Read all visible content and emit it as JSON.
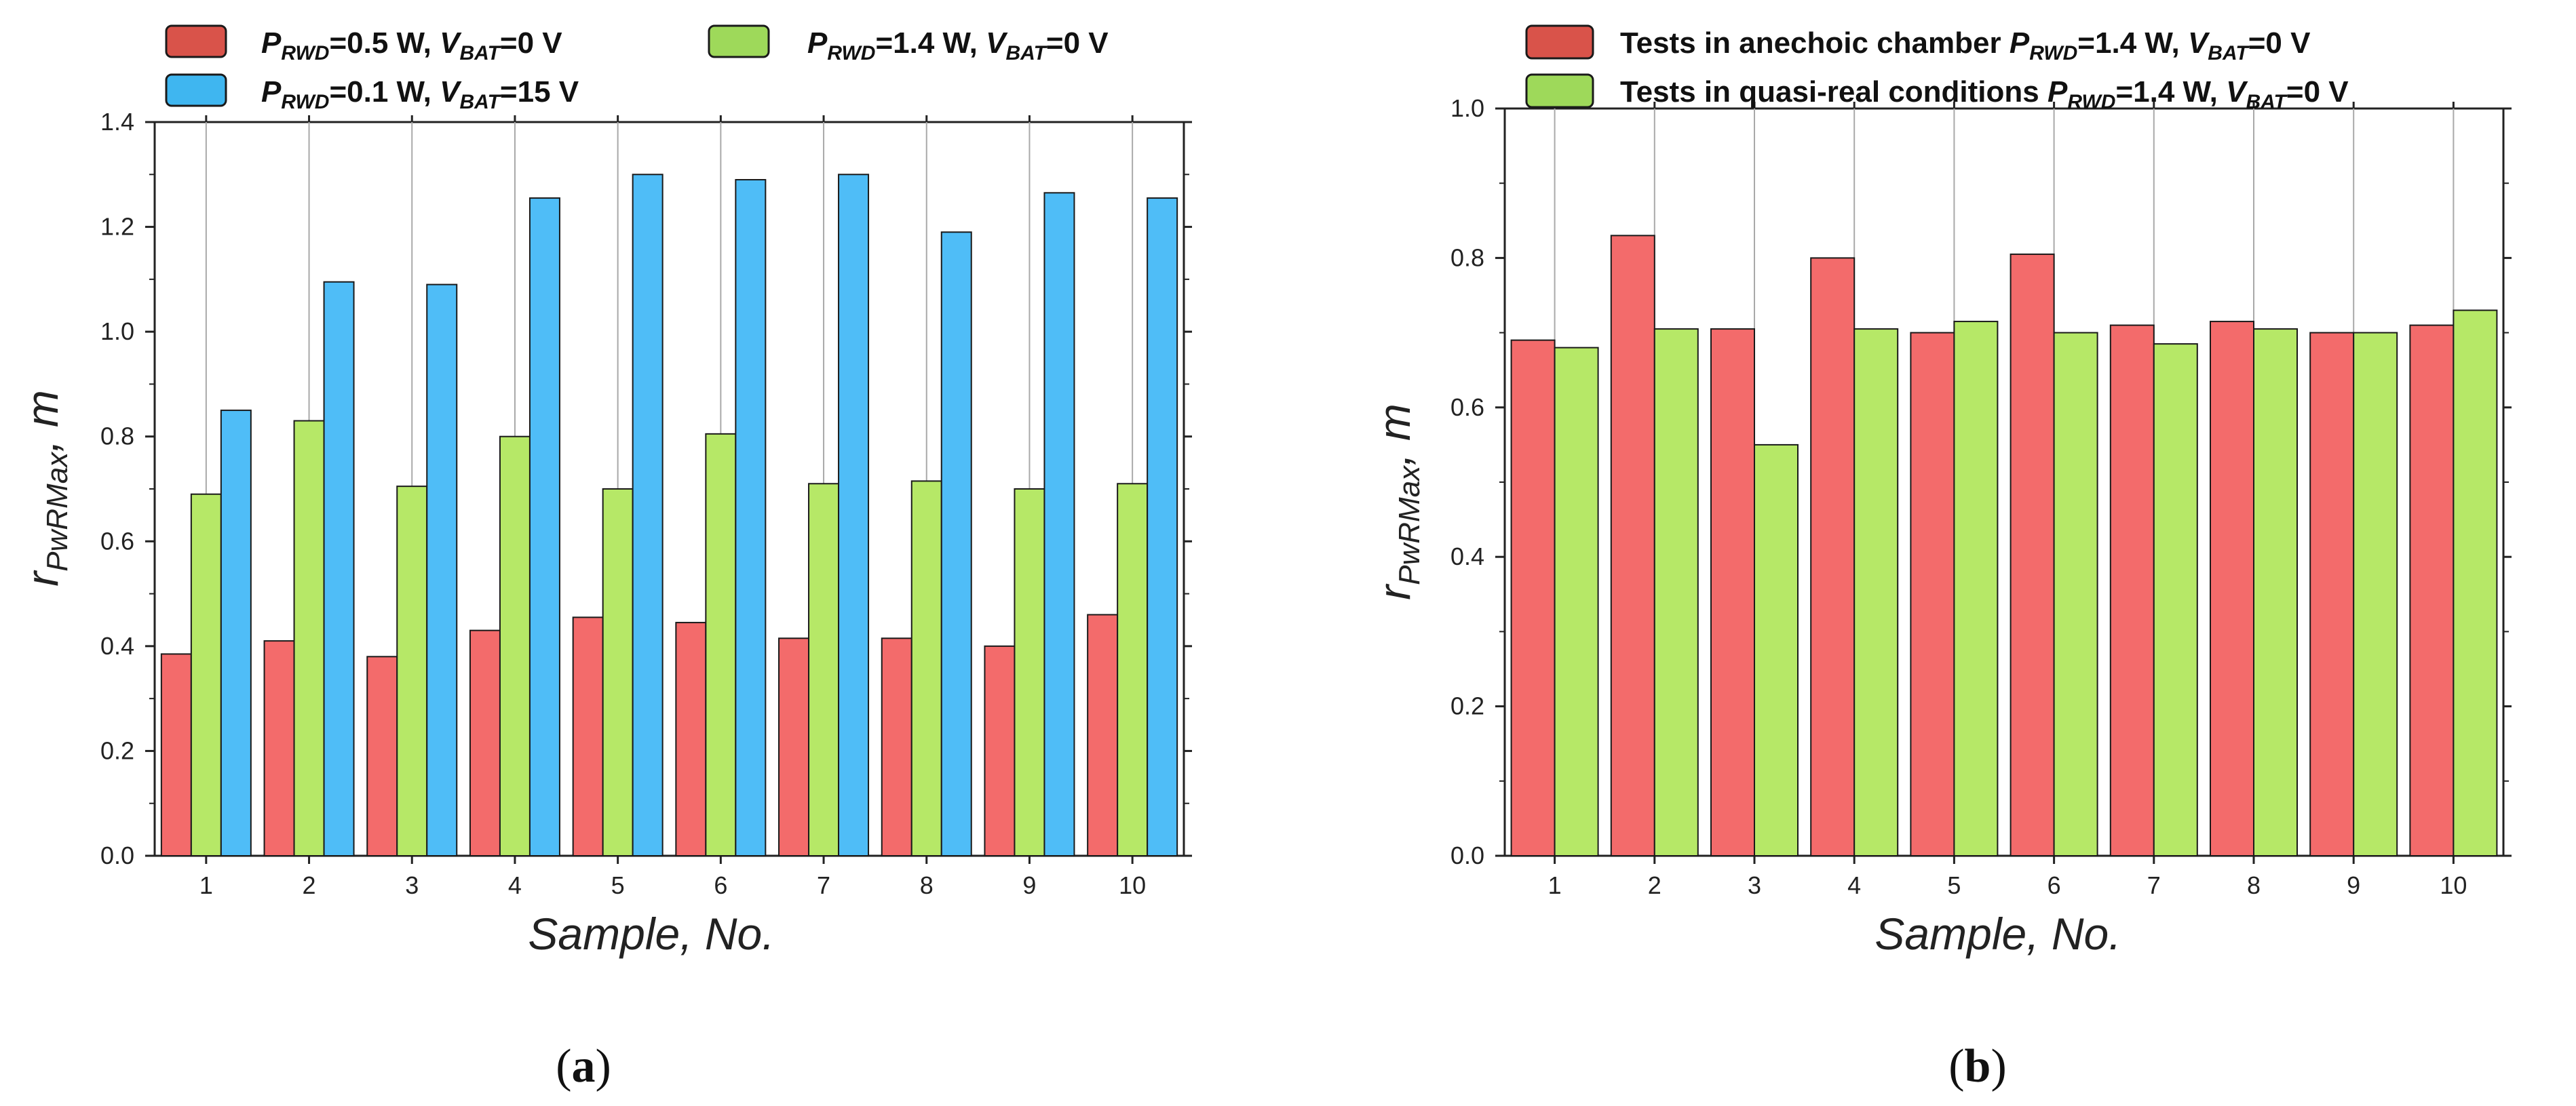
{
  "colors": {
    "red": "#f36b6b",
    "blue": "#4fbdf7",
    "green": "#b6e867",
    "red_swatch": "#d9534a",
    "blue_swatch": "#3fb6f0",
    "green_swatch": "#9ed95a"
  },
  "chart_data": [
    {
      "type": "bar",
      "panel_label": "(a)",
      "xlabel": "Sample, No.",
      "ylabel": "r_PwRMax, m",
      "ylim": [
        0,
        1.4
      ],
      "yticks": [
        "0.0",
        "0.2",
        "0.4",
        "0.6",
        "0.8",
        "1.0",
        "1.2",
        "1.4"
      ],
      "categories": [
        "1",
        "2",
        "3",
        "4",
        "5",
        "6",
        "7",
        "8",
        "9",
        "10"
      ],
      "legend_position": "top",
      "series": [
        {
          "name": "P_RWD=0.5 W, V_BAT=0 V",
          "color_key": "red",
          "swatch_key": "red_swatch",
          "legend": {
            "p": "P",
            "psub": "RWD",
            "pval": "=0.5 W, ",
            "v": "V",
            "vsub": "BAT",
            "vval": "=0 V"
          },
          "values": [
            0.385,
            0.41,
            0.38,
            0.43,
            0.455,
            0.445,
            0.415,
            0.415,
            0.4,
            0.46
          ]
        },
        {
          "name": "P_RWD=1.4 W, V_BAT=0 V",
          "color_key": "green",
          "swatch_key": "green_swatch",
          "legend": {
            "p": "P",
            "psub": "RWD",
            "pval": "=1.4 W, ",
            "v": "V",
            "vsub": "BAT",
            "vval": "=0 V"
          },
          "values": [
            0.69,
            0.83,
            0.705,
            0.8,
            0.7,
            0.805,
            0.71,
            0.715,
            0.7,
            0.71
          ]
        },
        {
          "name": "P_RWD=0.1 W, V_BAT=15 V",
          "color_key": "blue",
          "swatch_key": "blue_swatch",
          "legend": {
            "p": "P",
            "psub": "RWD",
            "pval": "=0.1 W, ",
            "v": "V",
            "vsub": "BAT",
            "vval": "=15 V"
          },
          "values": [
            0.85,
            1.095,
            1.09,
            1.255,
            1.3,
            1.29,
            1.3,
            1.19,
            1.265,
            1.255
          ]
        }
      ]
    },
    {
      "type": "bar",
      "panel_label": "(b)",
      "xlabel": "Sample, No.",
      "ylabel": "r_PwRMax, m",
      "ylim": [
        0,
        1.0
      ],
      "yticks": [
        "0.0",
        "0.2",
        "0.4",
        "0.6",
        "0.8",
        "1.0"
      ],
      "categories": [
        "1",
        "2",
        "3",
        "4",
        "5",
        "6",
        "7",
        "8",
        "9",
        "10"
      ],
      "legend_position": "top",
      "series": [
        {
          "name": "Tests in anechoic chamber P_RWD=1.4 W, V_BAT=0 V",
          "color_key": "red",
          "swatch_key": "red_swatch",
          "legend": {
            "prefix": "Tests in anechoic chamber ",
            "p": "P",
            "psub": "RWD",
            "pval": "=1.4 W, ",
            "v": "V",
            "vsub": "BAT",
            "vval": "=0 V"
          },
          "values": [
            0.69,
            0.83,
            0.705,
            0.8,
            0.7,
            0.805,
            0.71,
            0.715,
            0.7,
            0.71
          ]
        },
        {
          "name": "Tests in quasi-real conditions P_RWD=1.4 W, V_BAT=0 V",
          "color_key": "green",
          "swatch_key": "green_swatch",
          "legend": {
            "prefix": "Tests in quasi-real conditions ",
            "p": "P",
            "psub": "RWD",
            "pval": "=1.4 W, ",
            "v": "V",
            "vsub": "BAT",
            "vval": "=0 V"
          },
          "values": [
            0.68,
            0.705,
            0.55,
            0.705,
            0.715,
            0.7,
            0.685,
            0.705,
            0.7,
            0.73
          ]
        }
      ]
    }
  ]
}
